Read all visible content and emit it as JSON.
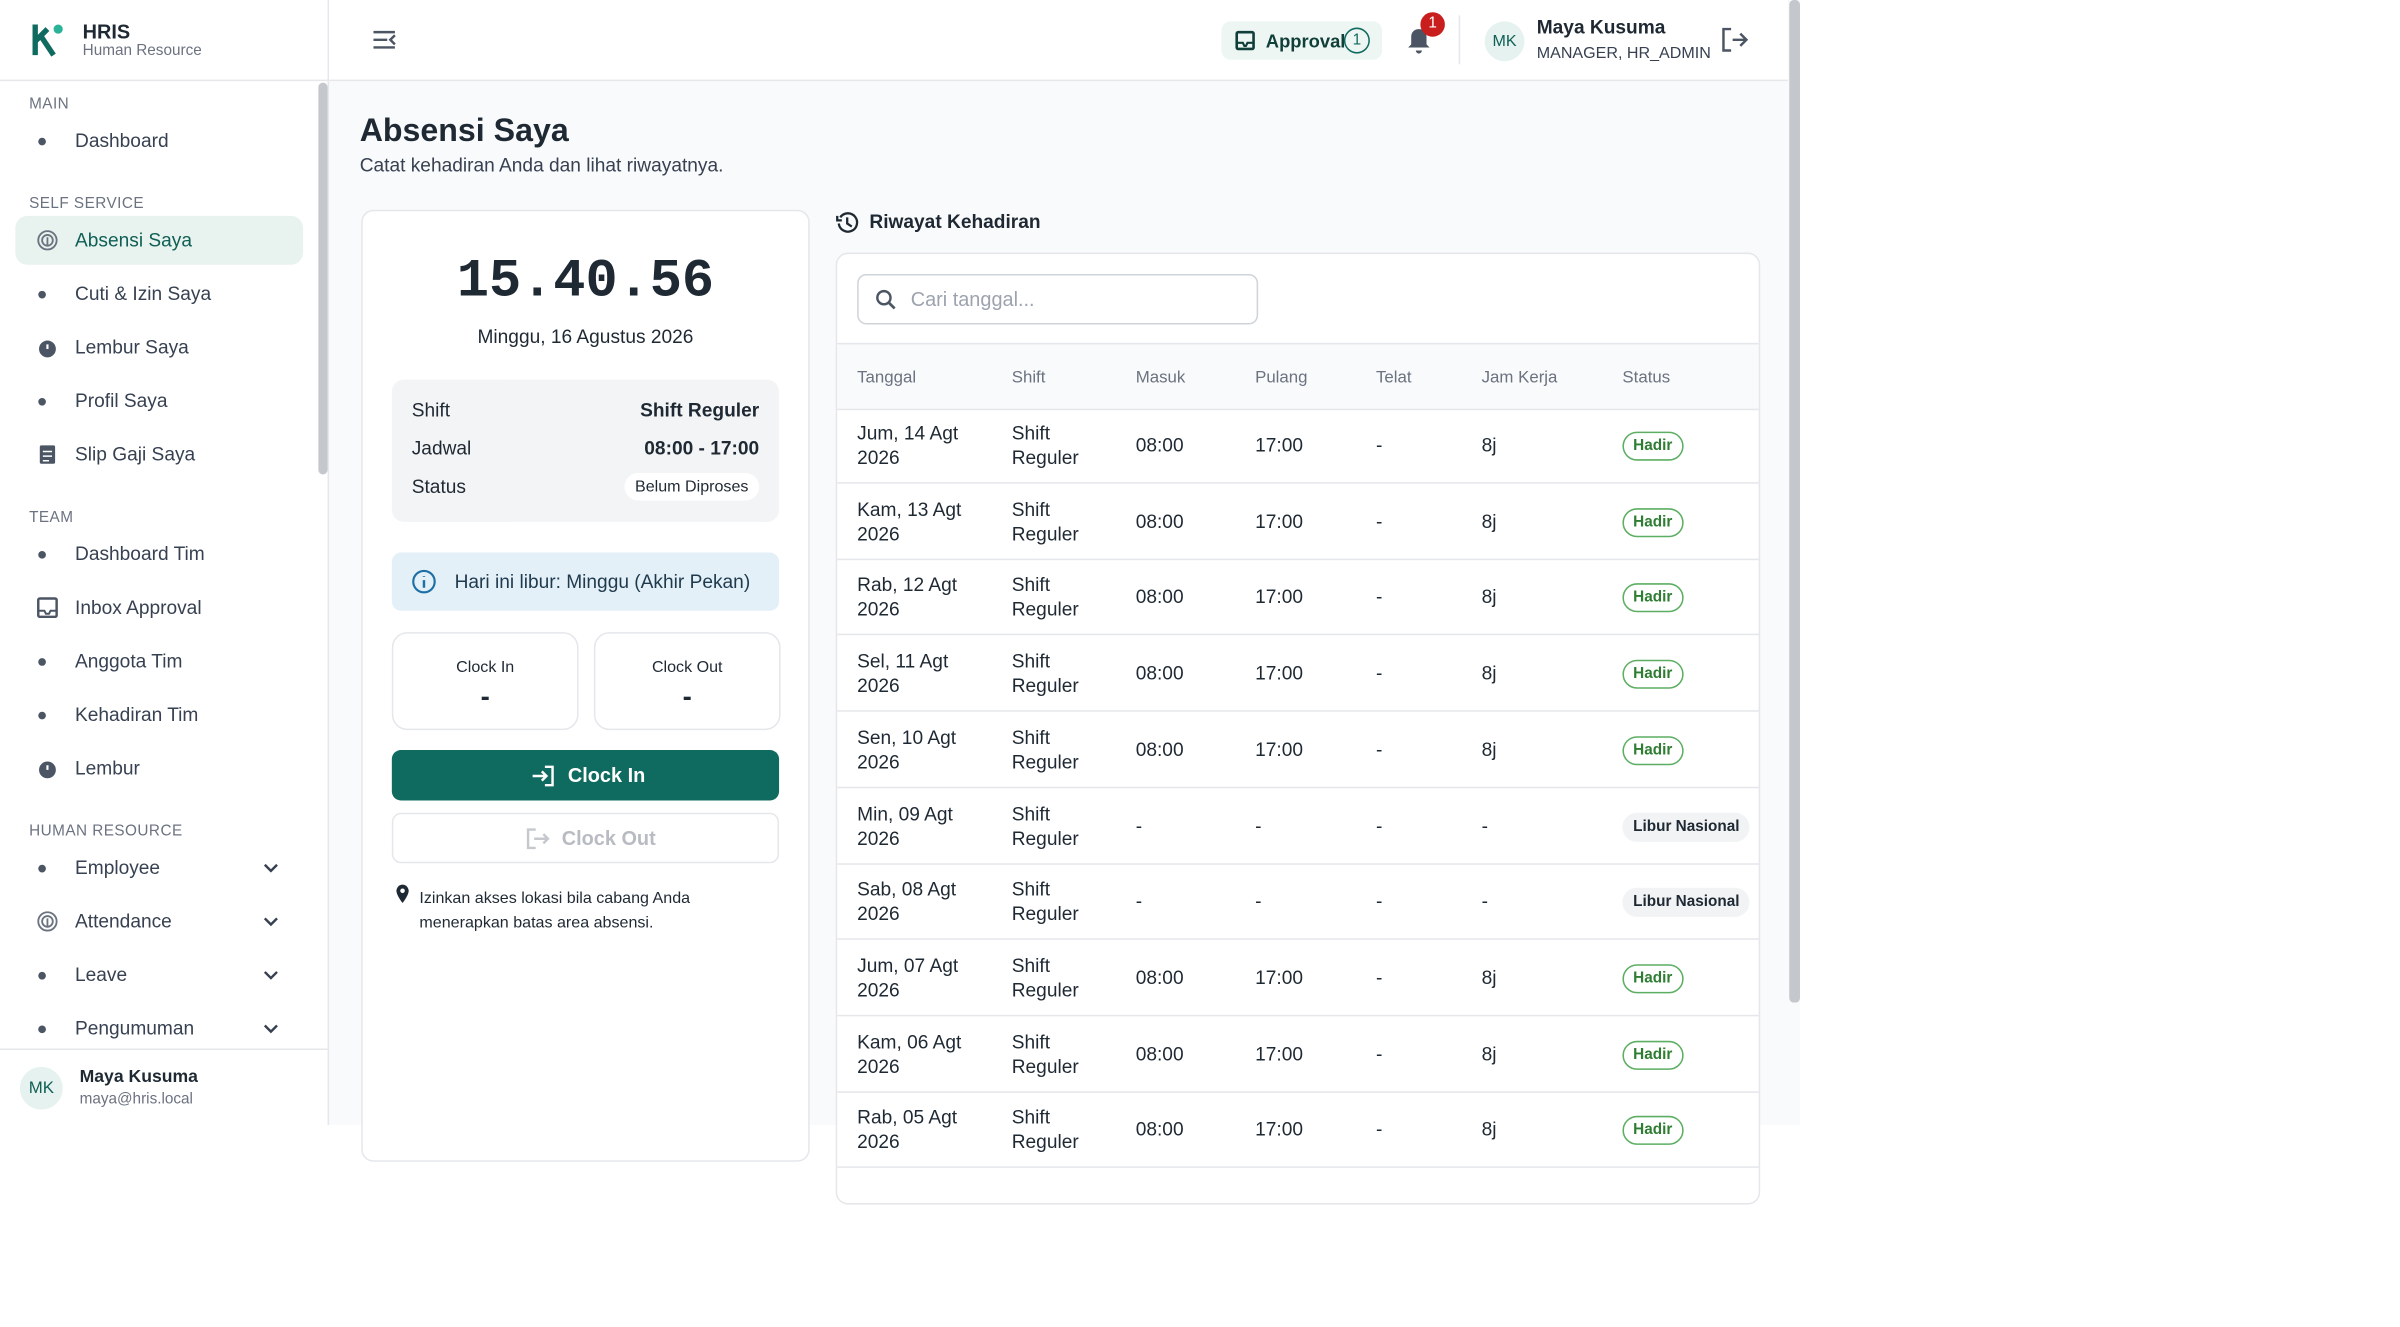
{
  "brand": {
    "name": "HRIS",
    "subtitle": "Human Resource"
  },
  "sidebar": {
    "sections": [
      {
        "label": "MAIN",
        "items": [
          "Dashboard"
        ]
      },
      {
        "label": "SELF SERVICE",
        "items": [
          "Absensi Saya",
          "Cuti & Izin Saya",
          "Lembur Saya",
          "Profil Saya",
          "Slip Gaji Saya"
        ]
      },
      {
        "label": "TEAM",
        "items": [
          "Dashboard Tim",
          "Inbox Approval",
          "Anggota Tim",
          "Kehadiran Tim",
          "Lembur"
        ]
      },
      {
        "label": "HUMAN RESOURCE",
        "items": [
          "Employee",
          "Attendance",
          "Leave",
          "Pengumuman"
        ]
      }
    ],
    "user": {
      "initials": "MK",
      "name": "Maya Kusuma",
      "email": "maya@hris.local"
    }
  },
  "header": {
    "approval": "Approval",
    "approval_count": 1,
    "notification_count": 1,
    "user": {
      "initials": "MK",
      "name": "Maya Kusuma",
      "roles": "MANAGER, HR_ADMIN"
    }
  },
  "page": {
    "title": "Absensi Saya",
    "subtitle": "Catat kehadiran Anda dan lihat riwayatnya."
  },
  "clock": {
    "time": "15.40.56",
    "date": "Minggu, 16 Agustus 2026",
    "shift_rows": [
      [
        "Shift",
        "Shift Reguler"
      ],
      [
        "Jadwal",
        "08:00 - 17:00"
      ],
      [
        "Status",
        "Belum Diproses"
      ]
    ],
    "holiday_notice": "Hari ini libur: Minggu (Akhir Pekan)",
    "clock_in_label": "Clock In",
    "clock_in_value": "-",
    "clock_out_label": "Clock Out",
    "clock_out_value": "-",
    "clock_in_button": "Clock In",
    "clock_out_button": "Clock Out",
    "location_note": "Izinkan akses lokasi bila cabang Anda menerapkan batas area absensi."
  },
  "history": {
    "title": "Riwayat Kehadiran",
    "search_placeholder": "Cari tanggal...",
    "columns": [
      "Tanggal",
      "Shift",
      "Masuk",
      "Pulang",
      "Telat",
      "Jam Kerja",
      "Status"
    ],
    "rows": [
      [
        "Jum, 14 Agt 2026",
        "Shift Reguler",
        "08:00",
        "17:00",
        "-",
        "8j",
        "Hadir"
      ],
      [
        "Kam, 13 Agt 2026",
        "Shift Reguler",
        "08:00",
        "17:00",
        "-",
        "8j",
        "Hadir"
      ],
      [
        "Rab, 12 Agt 2026",
        "Shift Reguler",
        "08:00",
        "17:00",
        "-",
        "8j",
        "Hadir"
      ],
      [
        "Sel, 11 Agt 2026",
        "Shift Reguler",
        "08:00",
        "17:00",
        "-",
        "8j",
        "Hadir"
      ],
      [
        "Sen, 10 Agt 2026",
        "Shift Reguler",
        "08:00",
        "17:00",
        "-",
        "8j",
        "Hadir"
      ],
      [
        "Min, 09 Agt 2026",
        "Shift Reguler",
        "-",
        "-",
        "-",
        "-",
        "Libur Nasional"
      ],
      [
        "Sab, 08 Agt 2026",
        "Shift Reguler",
        "-",
        "-",
        "-",
        "-",
        "Libur Nasional"
      ],
      [
        "Jum, 07 Agt 2026",
        "Shift Reguler",
        "08:00",
        "17:00",
        "-",
        "8j",
        "Hadir"
      ],
      [
        "Kam, 06 Agt 2026",
        "Shift Reguler",
        "08:00",
        "17:00",
        "-",
        "8j",
        "Hadir"
      ],
      [
        "Rab, 05 Agt 2026",
        "Shift Reguler",
        "08:00",
        "17:00",
        "-",
        "8j",
        "Hadir"
      ]
    ]
  }
}
